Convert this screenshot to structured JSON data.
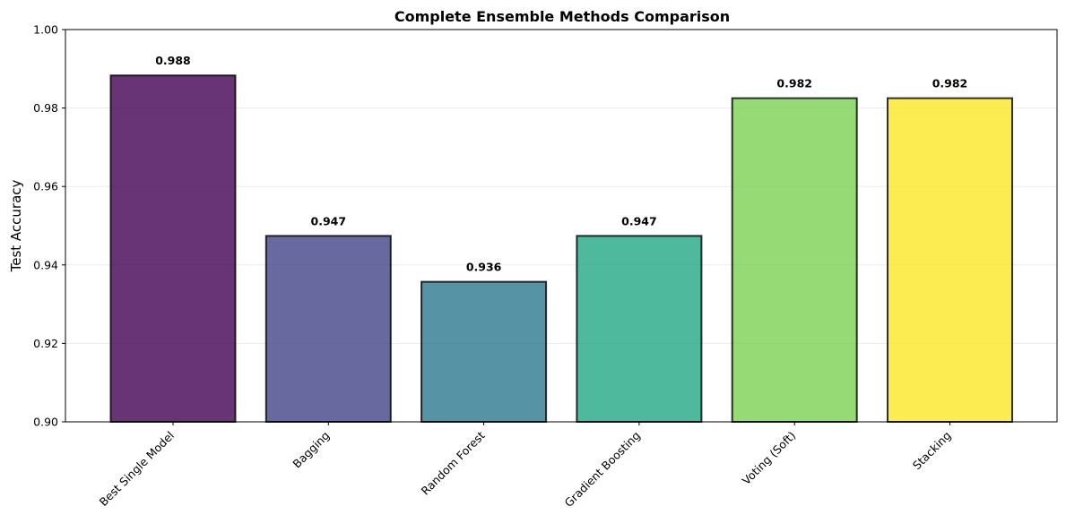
{
  "chart_data": {
    "type": "bar",
    "title": "Complete Ensemble Methods Comparison",
    "xlabel": "",
    "ylabel": "Test Accuracy",
    "categories": [
      "Best Single Model",
      "Bagging",
      "Random Forest",
      "Gradient Boosting",
      "Voting (Soft)",
      "Stacking"
    ],
    "values": [
      0.9883,
      0.9474,
      0.9357,
      0.9474,
      0.9825,
      0.9825
    ],
    "data_labels": [
      "0.988",
      "0.947",
      "0.936",
      "0.947",
      "0.982",
      "0.982"
    ],
    "colors": [
      "#440154",
      "#414487",
      "#2a788e",
      "#22a884",
      "#7ad151",
      "#fde725"
    ],
    "bar_opacity": 0.8,
    "edge_color": "#000000",
    "ylim": [
      0.9,
      1.0
    ],
    "yticks": [
      0.9,
      0.92,
      0.94,
      0.96,
      0.98,
      1.0
    ],
    "ytick_labels": [
      "0.90",
      "0.92",
      "0.94",
      "0.96",
      "0.98",
      "1.00"
    ],
    "grid": "y",
    "legend": "none"
  }
}
